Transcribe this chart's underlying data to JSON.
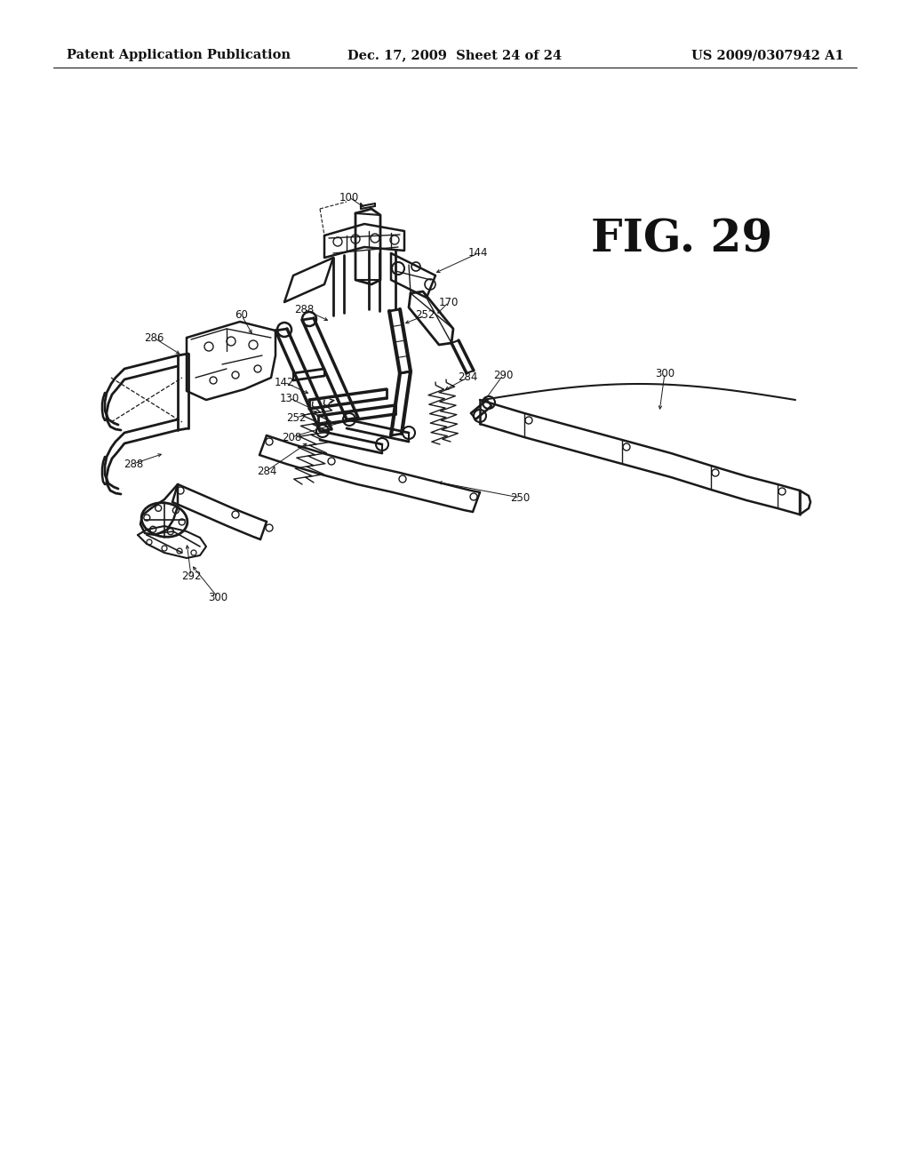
{
  "background_color": "#ffffff",
  "header_left": "Patent Application Publication",
  "header_middle": "Dec. 17, 2009  Sheet 24 of 24",
  "header_right": "US 2009/0307942 A1",
  "figure_label": "FIG. 29",
  "header_fontsize": 10.5,
  "figure_label_fontsize": 36,
  "line_color": "#1a1a1a",
  "ref_fontsize": 8.5
}
